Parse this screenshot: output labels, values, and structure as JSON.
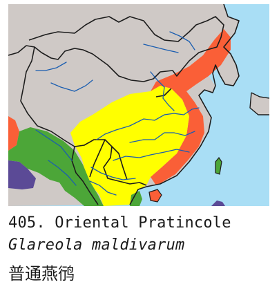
{
  "species": {
    "number_name": "405. Oriental Pratincole",
    "scientific_name": "Glareola maldivarum",
    "chinese_name": "普通燕鸻"
  },
  "map": {
    "colors": {
      "sea": "#a9def5",
      "land": "#cfc9c6",
      "range_yellow": "#ffff00",
      "range_orange": "#fa5f37",
      "range_green": "#4ca638",
      "range_purple": "#5b4a96",
      "river": "#1a5db0",
      "border": "#1c1c1c"
    },
    "legend_regions": [
      "orange",
      "yellow",
      "green",
      "purple"
    ]
  }
}
